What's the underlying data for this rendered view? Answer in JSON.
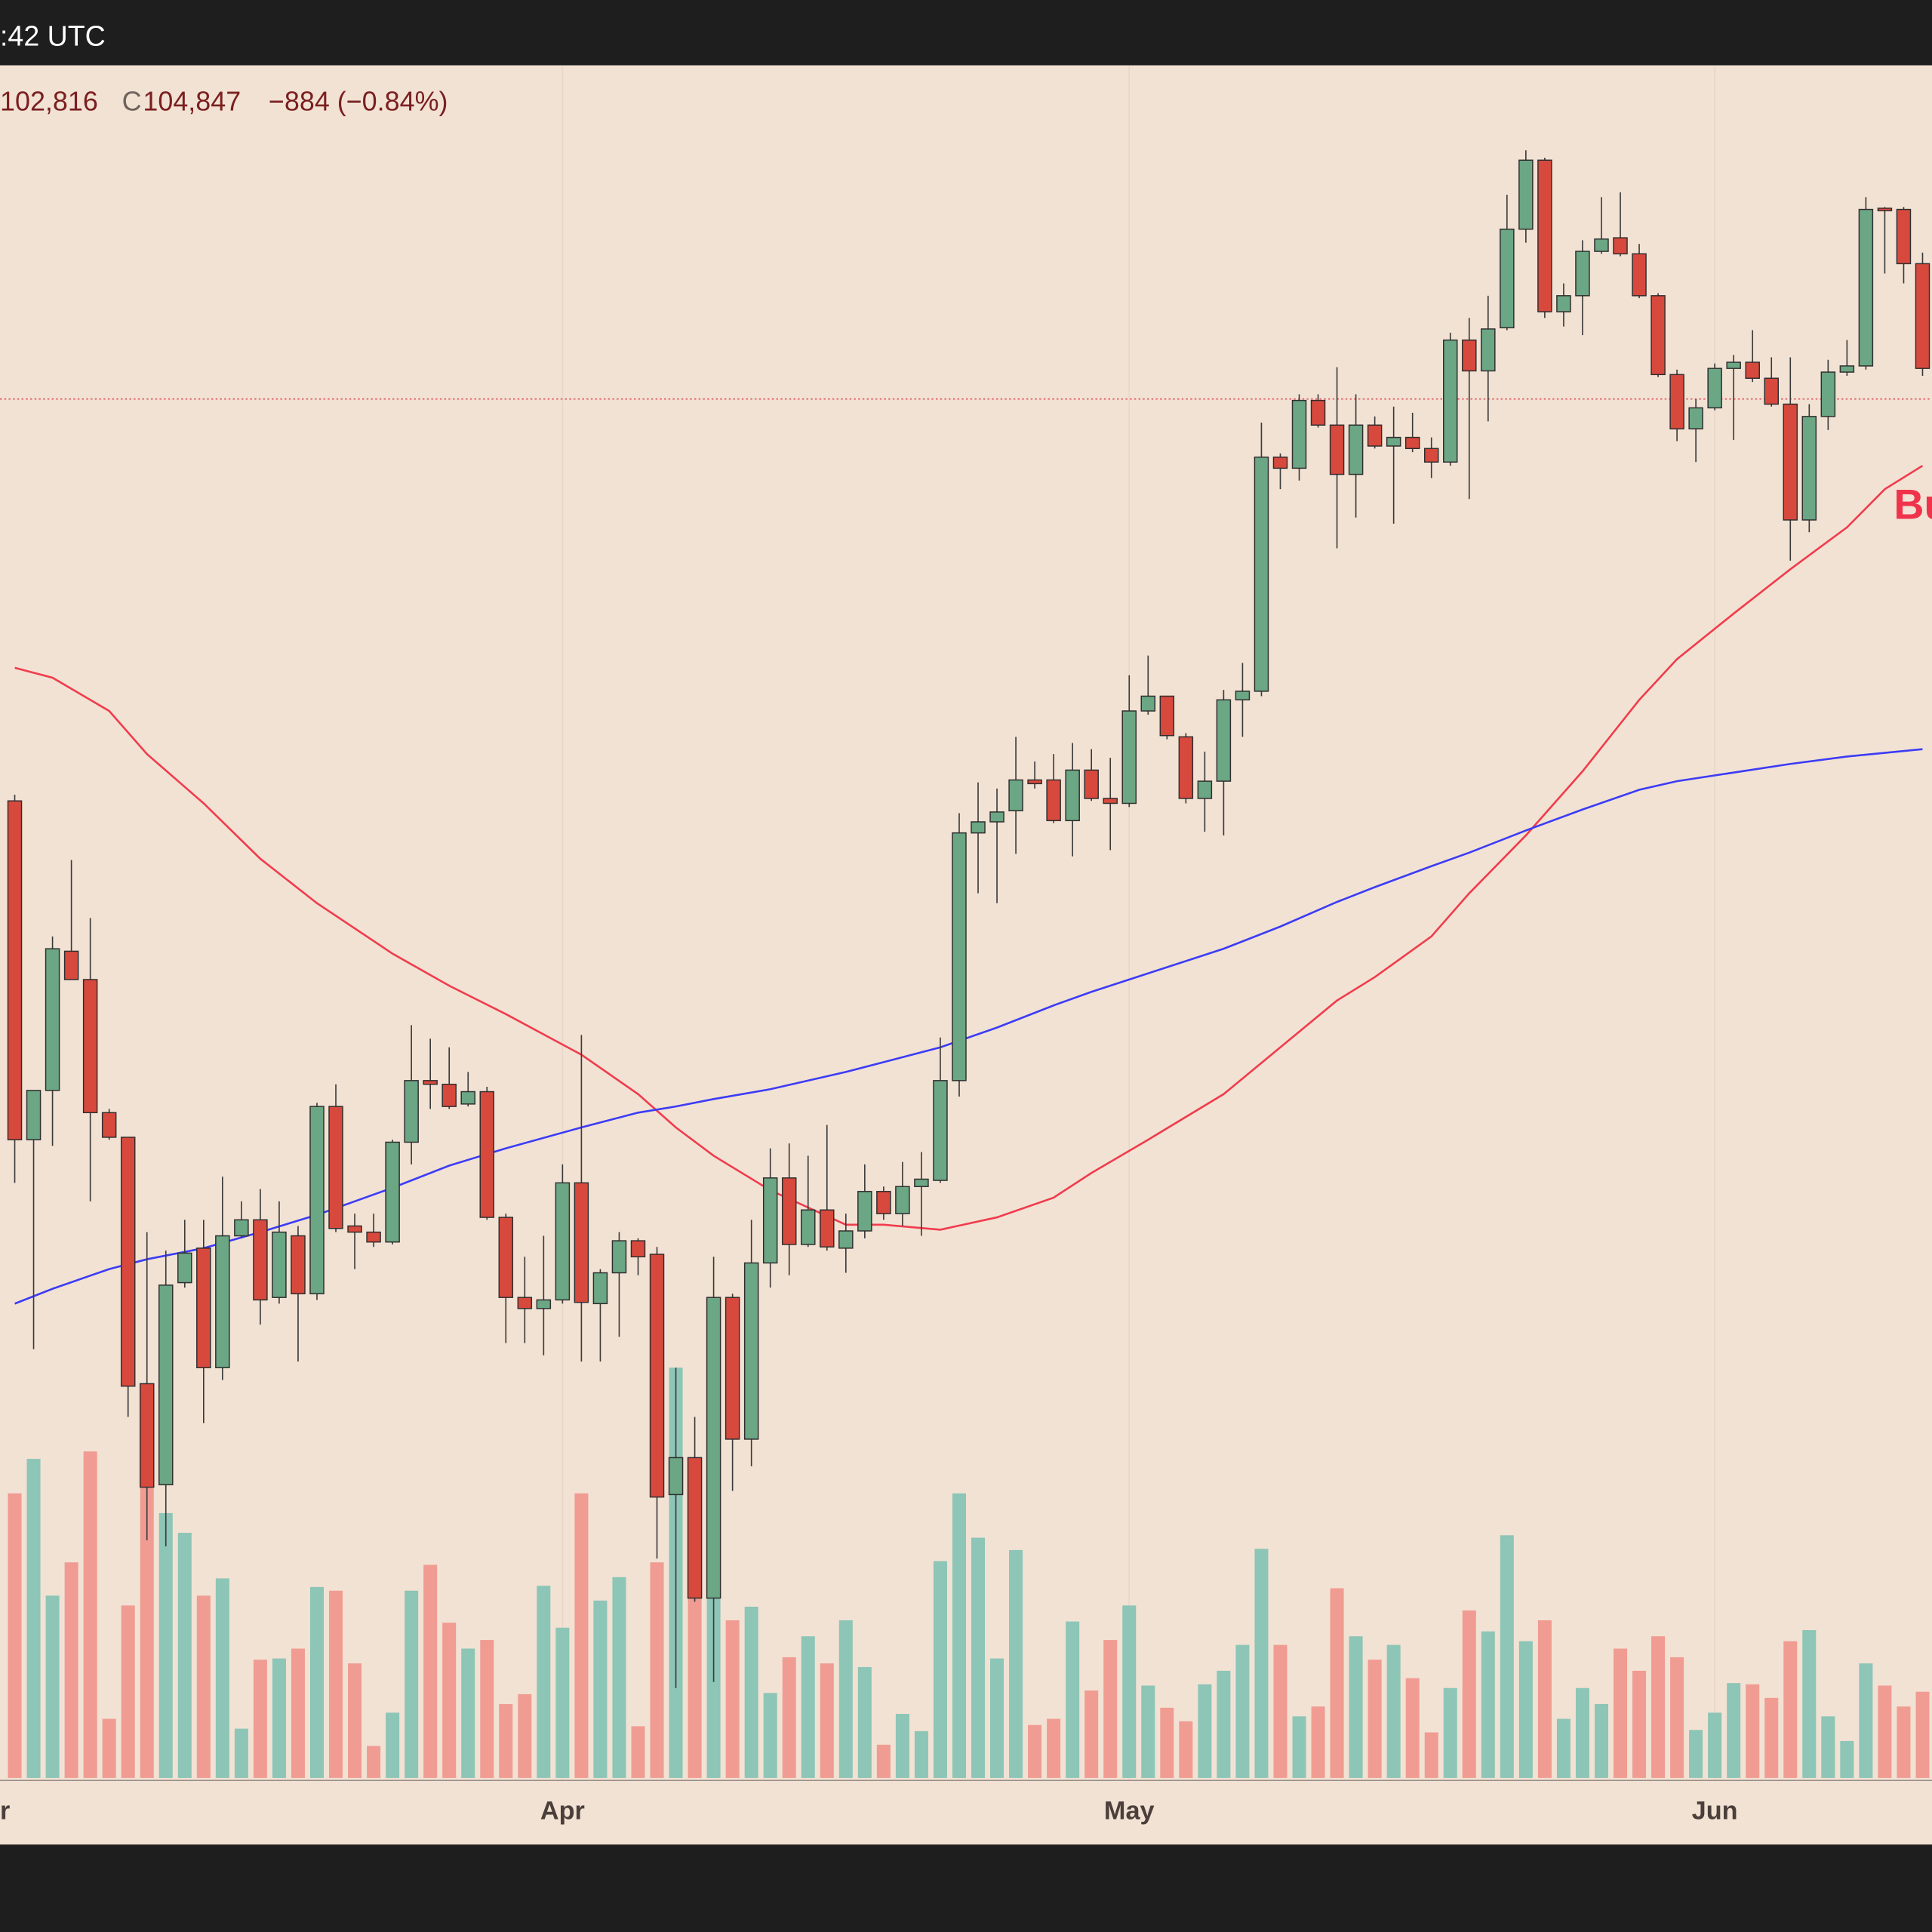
{
  "chart_data": {
    "type": "candlestick",
    "time_label": ":42 UTC",
    "low_text": "102,816",
    "close_prefix": "C",
    "close_text": "104,847",
    "change_text": "−884 (−0.84%)",
    "annotation": "Bu",
    "up_color": "#6ba685",
    "down_color": "#d8493d",
    "open": [
      91800,
      80800,
      82400,
      86920,
      86000,
      81680,
      80880,
      72880,
      69600,
      76160,
      77280,
      73400,
      77680,
      78200,
      75680,
      77680,
      75800,
      81880,
      78000,
      77800,
      77480,
      80720,
      82720,
      82600,
      81960,
      82360,
      78280,
      75680,
      75320,
      75600,
      79400,
      75480,
      76480,
      77520,
      77080,
      69280,
      70480,
      65920,
      75680,
      71080,
      76800,
      79560,
      77400,
      78520,
      77280,
      77840,
      79120,
      78400,
      79280,
      79480,
      82720,
      90760,
      91120,
      91480,
      92480,
      92480,
      91160,
      92800,
      91880,
      91720,
      94720,
      95200,
      93880,
      91880,
      92440,
      95080,
      95360,
      102960,
      102600,
      104800,
      104000,
      102400,
      104000,
      103320,
      103600,
      103240,
      102800,
      106760,
      105760,
      107160,
      110360,
      112600,
      107680,
      108200,
      109640,
      110080,
      109560,
      108200,
      105640,
      103880,
      104560,
      105840,
      106040,
      105520,
      104680,
      100920,
      104280,
      105720,
      105920,
      111040,
      111000,
      109240
    ],
    "high": [
      92000,
      82400,
      87400,
      89880,
      88000,
      81800,
      80880,
      77800,
      77200,
      78200,
      78200,
      79600,
      78800,
      79200,
      78800,
      78000,
      82000,
      82600,
      78400,
      78400,
      80800,
      84520,
      84080,
      83800,
      83000,
      82520,
      78400,
      77000,
      77680,
      80000,
      84200,
      76600,
      77800,
      77600,
      77320,
      73400,
      71800,
      77000,
      75800,
      78200,
      80520,
      80680,
      80280,
      81280,
      78400,
      80000,
      79280,
      80080,
      80400,
      84120,
      91400,
      92400,
      92200,
      93880,
      93080,
      93320,
      93680,
      93480,
      93200,
      95880,
      96520,
      95200,
      94000,
      93400,
      95400,
      96280,
      104080,
      103080,
      105000,
      105000,
      105880,
      105000,
      104280,
      104600,
      104400,
      103600,
      107000,
      107480,
      108200,
      111480,
      112920,
      112680,
      108600,
      110000,
      111400,
      111560,
      109880,
      108280,
      105800,
      104840,
      106000,
      106280,
      107080,
      106200,
      106200,
      104680,
      106120,
      106760,
      111400,
      111080,
      111080,
      109600
    ],
    "low": [
      79400,
      74000,
      80600,
      86000,
      78800,
      80800,
      71800,
      67800,
      67600,
      76000,
      71600,
      73000,
      77600,
      74800,
      75480,
      73600,
      75600,
      77800,
      76600,
      77320,
      77400,
      80000,
      81800,
      81800,
      81880,
      78200,
      74200,
      74200,
      73800,
      75480,
      73600,
      73600,
      74400,
      76400,
      67200,
      63000,
      65800,
      63200,
      69400,
      70200,
      76000,
      76400,
      77320,
      77200,
      76480,
      77600,
      78200,
      78000,
      77680,
      79400,
      82200,
      88800,
      88480,
      90080,
      92200,
      91080,
      90000,
      91800,
      90200,
      91600,
      94600,
      93800,
      91720,
      90800,
      90680,
      93880,
      95200,
      101920,
      102200,
      103920,
      100000,
      101000,
      103240,
      100800,
      103120,
      102280,
      102680,
      101600,
      104120,
      107080,
      109920,
      107480,
      107200,
      106920,
      109560,
      109480,
      108120,
      105560,
      103480,
      102800,
      104480,
      103520,
      105400,
      104600,
      99600,
      100520,
      103840,
      105600,
      105800,
      108920,
      108600,
      105600
    ],
    "close": [
      80800,
      82400,
      87000,
      86000,
      81680,
      80880,
      72800,
      69520,
      76080,
      77120,
      73400,
      77680,
      78200,
      75600,
      77800,
      75800,
      81880,
      77920,
      77800,
      77480,
      80720,
      82720,
      82600,
      81880,
      82360,
      78280,
      75680,
      75320,
      75600,
      79400,
      75520,
      76480,
      77520,
      77000,
      69200,
      70480,
      65920,
      75680,
      71080,
      76800,
      79560,
      77400,
      78520,
      77320,
      77840,
      79120,
      78400,
      79280,
      79520,
      82720,
      90760,
      91120,
      91440,
      92480,
      92360,
      91160,
      92800,
      91880,
      91720,
      94720,
      95200,
      93920,
      91880,
      92440,
      95080,
      95360,
      102960,
      102600,
      104800,
      104000,
      102400,
      104000,
      103320,
      103600,
      103240,
      102800,
      106760,
      105760,
      107120,
      110360,
      112600,
      107680,
      108200,
      109640,
      110040,
      109560,
      108200,
      105640,
      103880,
      104560,
      105840,
      106040,
      105520,
      104680,
      100920,
      104280,
      105720,
      105920,
      111000,
      110960,
      109240,
      105840
    ],
    "volume": {
      "values": [
        231,
        259,
        148,
        175,
        265,
        48,
        140,
        313,
        215,
        199,
        148,
        162,
        40,
        96,
        97,
        105,
        155,
        152,
        93,
        26,
        53,
        152,
        173,
        126,
        105,
        112,
        60,
        68,
        156,
        122,
        231,
        144,
        163,
        42,
        175,
        333,
        183,
        213,
        128,
        139,
        69,
        98,
        115,
        93,
        128,
        90,
        27,
        52,
        38,
        176,
        231,
        195,
        97,
        185,
        43,
        48,
        127,
        71,
        112,
        140,
        75,
        57,
        46,
        76,
        87,
        108,
        186,
        108,
        50,
        58,
        154,
        115,
        96,
        108,
        81,
        37,
        73,
        136,
        119,
        197,
        111,
        128,
        48,
        73,
        60,
        105,
        87,
        115,
        98,
        39,
        53,
        77,
        76,
        65,
        111,
        120,
        50,
        30,
        93,
        75,
        58,
        70
      ],
      "up_color": "#8dc5b6",
      "down_color": "#f09c92",
      "vlim": [
        0,
        400
      ]
    },
    "moving_averages": [
      {
        "color": "#f03c4c",
        "x": [
          0,
          2,
          5,
          7,
          10,
          13,
          16,
          20,
          23,
          26,
          30,
          33,
          35,
          37,
          40,
          44,
          46,
          49,
          52,
          55,
          57,
          60,
          64,
          67,
          70,
          72,
          75,
          77,
          80,
          83,
          86,
          88,
          91,
          94,
          97,
          99,
          101
        ],
        "values": [
          96120,
          95800,
          94720,
          93320,
          91720,
          89920,
          88480,
          86840,
          85800,
          84880,
          83560,
          82280,
          81200,
          80280,
          79160,
          78040,
          78040,
          77880,
          78280,
          78920,
          79720,
          80800,
          82280,
          83800,
          85320,
          86080,
          87400,
          88800,
          90680,
          92760,
          95080,
          96400,
          97880,
          99320,
          100680,
          101920,
          102680
        ]
      },
      {
        "color": "#3c3cf5",
        "x": [
          0,
          2,
          5,
          7,
          10,
          13,
          16,
          20,
          23,
          26,
          30,
          33,
          35,
          37,
          40,
          44,
          46,
          49,
          52,
          55,
          57,
          60,
          64,
          67,
          70,
          72,
          75,
          77,
          80,
          83,
          86,
          88,
          91,
          94,
          97,
          99,
          101
        ],
        "values": [
          75480,
          75960,
          76600,
          76920,
          77280,
          77800,
          78360,
          79240,
          79960,
          80520,
          81200,
          81680,
          81880,
          82120,
          82440,
          83000,
          83320,
          83800,
          84440,
          85160,
          85600,
          86200,
          87000,
          87720,
          88520,
          89000,
          89680,
          90120,
          90840,
          91520,
          92160,
          92440,
          92720,
          93000,
          93240,
          93360,
          93480
        ]
      }
    ],
    "last_price": 104847,
    "last_price_color": "#e0505a",
    "xlim": [
      -0.78,
      101.5
    ],
    "ylim": [
      60080,
      115680
    ],
    "xticks": [
      {
        "value": -2,
        "label": "r"
      },
      {
        "value": 29,
        "label": "Apr"
      },
      {
        "value": 59,
        "label": "May"
      },
      {
        "value": 90,
        "label": "Jun"
      }
    ],
    "grid": true
  }
}
